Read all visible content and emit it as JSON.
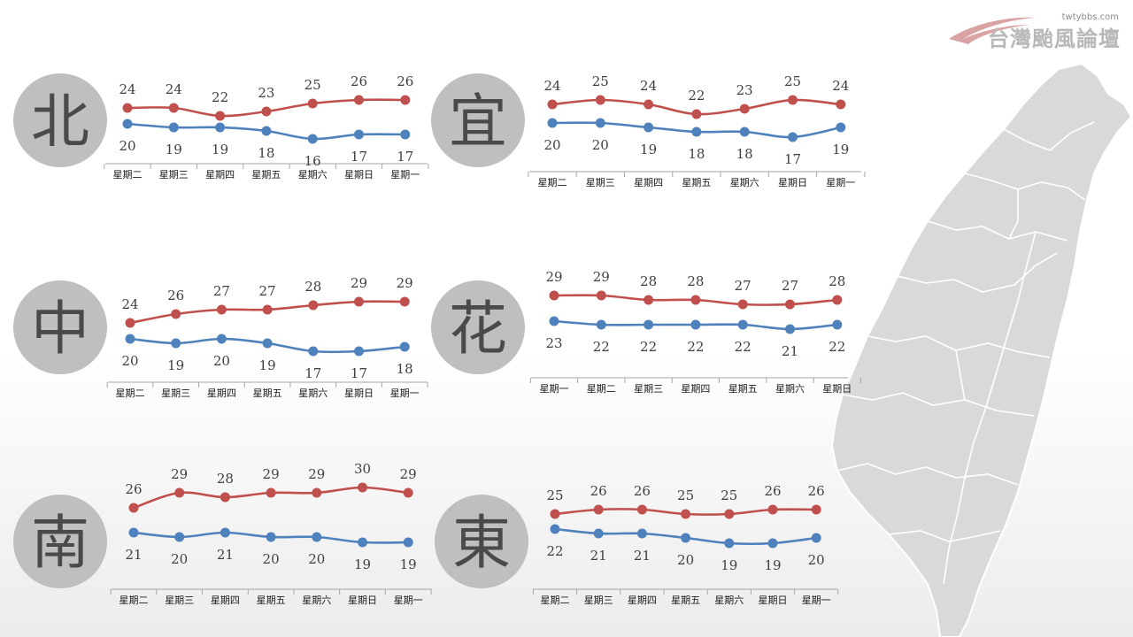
{
  "branding": {
    "url": "twtybbs.com",
    "name": "台灣颱風論壇"
  },
  "colors": {
    "high": "#c0504d",
    "low": "#4f81bd",
    "region_circle": "#bfbfbf",
    "region_text": "#4a4a4a",
    "axis": "#a6a6a6",
    "label_text": "#404040",
    "map_fill": "#d9d9d9",
    "map_stroke": "#ffffff"
  },
  "chart_data": [
    {
      "type": "line",
      "region": "北",
      "categories": [
        "星期二",
        "星期三",
        "星期四",
        "星期五",
        "星期六",
        "星期日",
        "星期一"
      ],
      "series": [
        {
          "values": [
            24,
            24,
            22,
            23,
            25,
            26,
            26
          ]
        },
        {
          "values": [
            20,
            19,
            19,
            18,
            16,
            17,
            17
          ]
        }
      ]
    },
    {
      "type": "line",
      "region": "宜",
      "categories": [
        "星期二",
        "星期三",
        "星期四",
        "星期五",
        "星期六",
        "星期日",
        "星期一"
      ],
      "series": [
        {
          "values": [
            24,
            25,
            24,
            22,
            23,
            25,
            24
          ]
        },
        {
          "values": [
            20,
            20,
            19,
            18,
            18,
            17,
            19
          ]
        }
      ]
    },
    {
      "type": "line",
      "region": "中",
      "categories": [
        "星期二",
        "星期三",
        "星期四",
        "星期五",
        "星期六",
        "星期日",
        "星期一"
      ],
      "series": [
        {
          "values": [
            24,
            26,
            27,
            27,
            28,
            29,
            29
          ]
        },
        {
          "values": [
            20,
            19,
            20,
            19,
            17,
            17,
            18
          ]
        }
      ]
    },
    {
      "type": "line",
      "region": "花",
      "categories": [
        "星期一",
        "星期二",
        "星期三",
        "星期四",
        "星期五",
        "星期六",
        "星期日"
      ],
      "series": [
        {
          "values": [
            29,
            29,
            28,
            28,
            27,
            27,
            28
          ]
        },
        {
          "values": [
            23,
            22,
            22,
            22,
            22,
            21,
            22
          ]
        }
      ]
    },
    {
      "type": "line",
      "region": "南",
      "categories": [
        "星期二",
        "星期三",
        "星期四",
        "星期五",
        "星期六",
        "星期日",
        "星期一"
      ],
      "series": [
        {
          "values": [
            26,
            29,
            28,
            29,
            29,
            30,
            29
          ]
        },
        {
          "values": [
            21,
            20,
            21,
            20,
            20,
            19,
            19
          ]
        }
      ]
    },
    {
      "type": "line",
      "region": "東",
      "categories": [
        "星期二",
        "星期三",
        "星期四",
        "星期五",
        "星期六",
        "星期日",
        "星期一"
      ],
      "series": [
        {
          "values": [
            25,
            26,
            26,
            25,
            25,
            26,
            26
          ]
        },
        {
          "values": [
            22,
            21,
            21,
            20,
            19,
            19,
            20
          ]
        }
      ]
    }
  ]
}
